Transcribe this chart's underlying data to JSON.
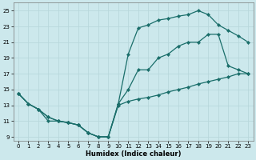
{
  "xlabel": "Humidex (Indice chaleur)",
  "bg_color": "#cce8ec",
  "grid_color": "#b0d0d8",
  "line_color": "#1a6e6a",
  "xlim": [
    -0.5,
    23.5
  ],
  "ylim": [
    8.5,
    26
  ],
  "xticks": [
    0,
    1,
    2,
    3,
    4,
    5,
    6,
    7,
    8,
    9,
    10,
    11,
    12,
    13,
    14,
    15,
    16,
    17,
    18,
    19,
    20,
    21,
    22,
    23
  ],
  "yticks": [
    9,
    11,
    13,
    15,
    17,
    19,
    21,
    23,
    25
  ],
  "line1_x": [
    0,
    1,
    2,
    3,
    4,
    5,
    6,
    7,
    8,
    9,
    10,
    11,
    12,
    13,
    14,
    15,
    16,
    17,
    18,
    19,
    20,
    21,
    22,
    23
  ],
  "line1_y": [
    14.5,
    13.2,
    12.5,
    11.5,
    11.0,
    10.8,
    10.5,
    9.5,
    9.0,
    9.0,
    13.2,
    15.0,
    17.5,
    17.5,
    19.0,
    19.5,
    20.5,
    21.0,
    21.0,
    22.0,
    22.0,
    18.0,
    17.5,
    17.0
  ],
  "line2_x": [
    0,
    1,
    2,
    3,
    4,
    5,
    6,
    7,
    8,
    9,
    10,
    11,
    12,
    13,
    14,
    15,
    16,
    17,
    18,
    19,
    20,
    21,
    22,
    23
  ],
  "line2_y": [
    14.5,
    13.2,
    12.5,
    11.0,
    11.0,
    10.8,
    10.5,
    9.5,
    9.0,
    9.0,
    13.2,
    19.5,
    22.8,
    23.2,
    23.8,
    24.0,
    24.3,
    24.5,
    25.0,
    24.5,
    23.2,
    22.5,
    21.8,
    21.0
  ],
  "line3_x": [
    0,
    1,
    2,
    3,
    4,
    5,
    6,
    7,
    8,
    9,
    10,
    11,
    12,
    13,
    14,
    15,
    16,
    17,
    18,
    19,
    20,
    21,
    22,
    23
  ],
  "line3_y": [
    14.5,
    13.2,
    12.5,
    11.5,
    11.0,
    10.8,
    10.5,
    9.5,
    9.0,
    9.0,
    13.0,
    13.5,
    13.8,
    14.0,
    14.3,
    14.7,
    15.0,
    15.3,
    15.7,
    16.0,
    16.3,
    16.6,
    17.0,
    17.0
  ]
}
